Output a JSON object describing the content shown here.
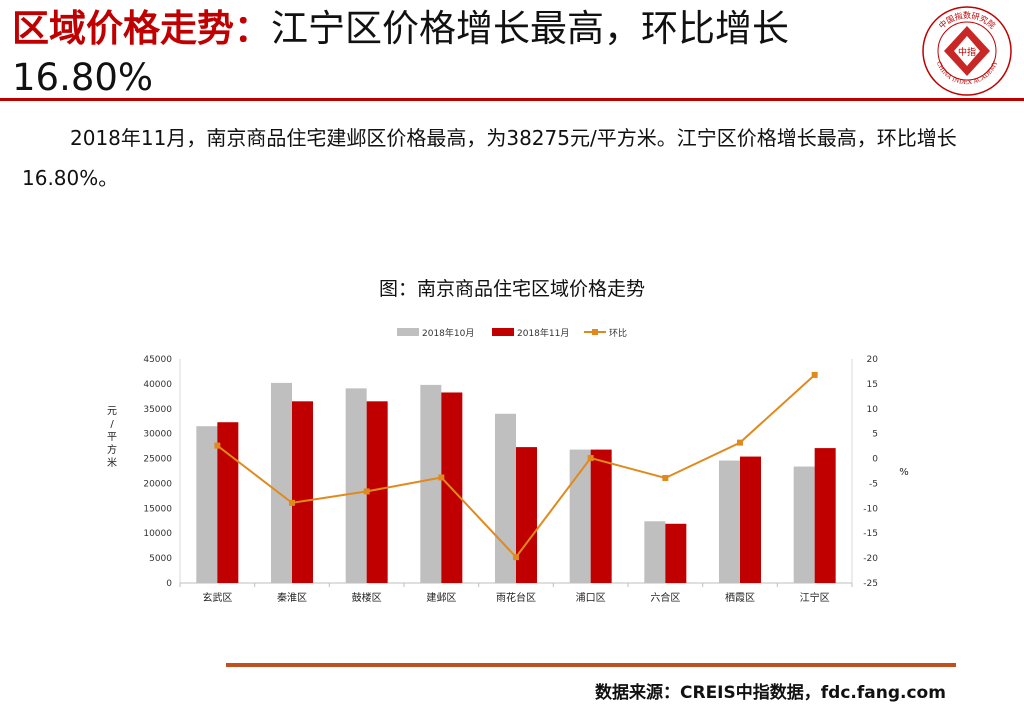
{
  "header": {
    "title_highlight": "区域价格走势：",
    "title_rest": "江宁区价格增长最高，环比增长16.80%"
  },
  "logo": {
    "name": "china-index-academy-seal",
    "text_top": "中国指数研究院",
    "text_center": "中指",
    "text_bottom": "CHINA INDEX ACADEMY",
    "color": "#c00000"
  },
  "body": {
    "paragraph": "2018年11月，南京商品住宅建邺区价格最高，为38275元/平方米。江宁区价格增长最高，环比增长16.80%。"
  },
  "colors": {
    "accent": "#c00000",
    "series_oct": "#bfbfbf",
    "series_nov": "#c00000",
    "series_mom": "#e08a1e",
    "rule_bottom": "#c0501f"
  },
  "chart_title": "图：南京商品住宅区域价格走势",
  "chart_data": {
    "type": "bar",
    "categories": [
      "玄武区",
      "秦淮区",
      "鼓楼区",
      "建邺区",
      "雨花台区",
      "浦口区",
      "六合区",
      "栖霞区",
      "江宁区"
    ],
    "series": [
      {
        "name": "2018年10月",
        "kind": "bar",
        "axis": "left",
        "values": [
          31500,
          40200,
          39100,
          39800,
          34000,
          26800,
          12400,
          24600,
          23400
        ]
      },
      {
        "name": "2018年11月",
        "kind": "bar",
        "axis": "left",
        "values": [
          32300,
          36500,
          36500,
          38275,
          27300,
          26800,
          11900,
          25400,
          27100
        ]
      },
      {
        "name": "环比",
        "kind": "line",
        "axis": "right",
        "values": [
          2.6,
          -8.9,
          -6.6,
          -3.8,
          -19.8,
          0.1,
          -3.9,
          3.2,
          16.8
        ]
      }
    ],
    "ylabel": "元/平方米",
    "y2label": "%",
    "ylim": [
      0,
      45000
    ],
    "yticks": [
      0,
      5000,
      10000,
      15000,
      20000,
      25000,
      30000,
      35000,
      40000,
      45000
    ],
    "y2lim": [
      -25,
      20
    ],
    "y2ticks": [
      -25,
      -20,
      -15,
      -10,
      -5,
      0,
      5,
      10,
      15,
      20
    ],
    "legend_position": "top-center",
    "grid": false
  },
  "footer": {
    "source": "数据来源：CREIS中指数据，fdc.fang.com"
  }
}
